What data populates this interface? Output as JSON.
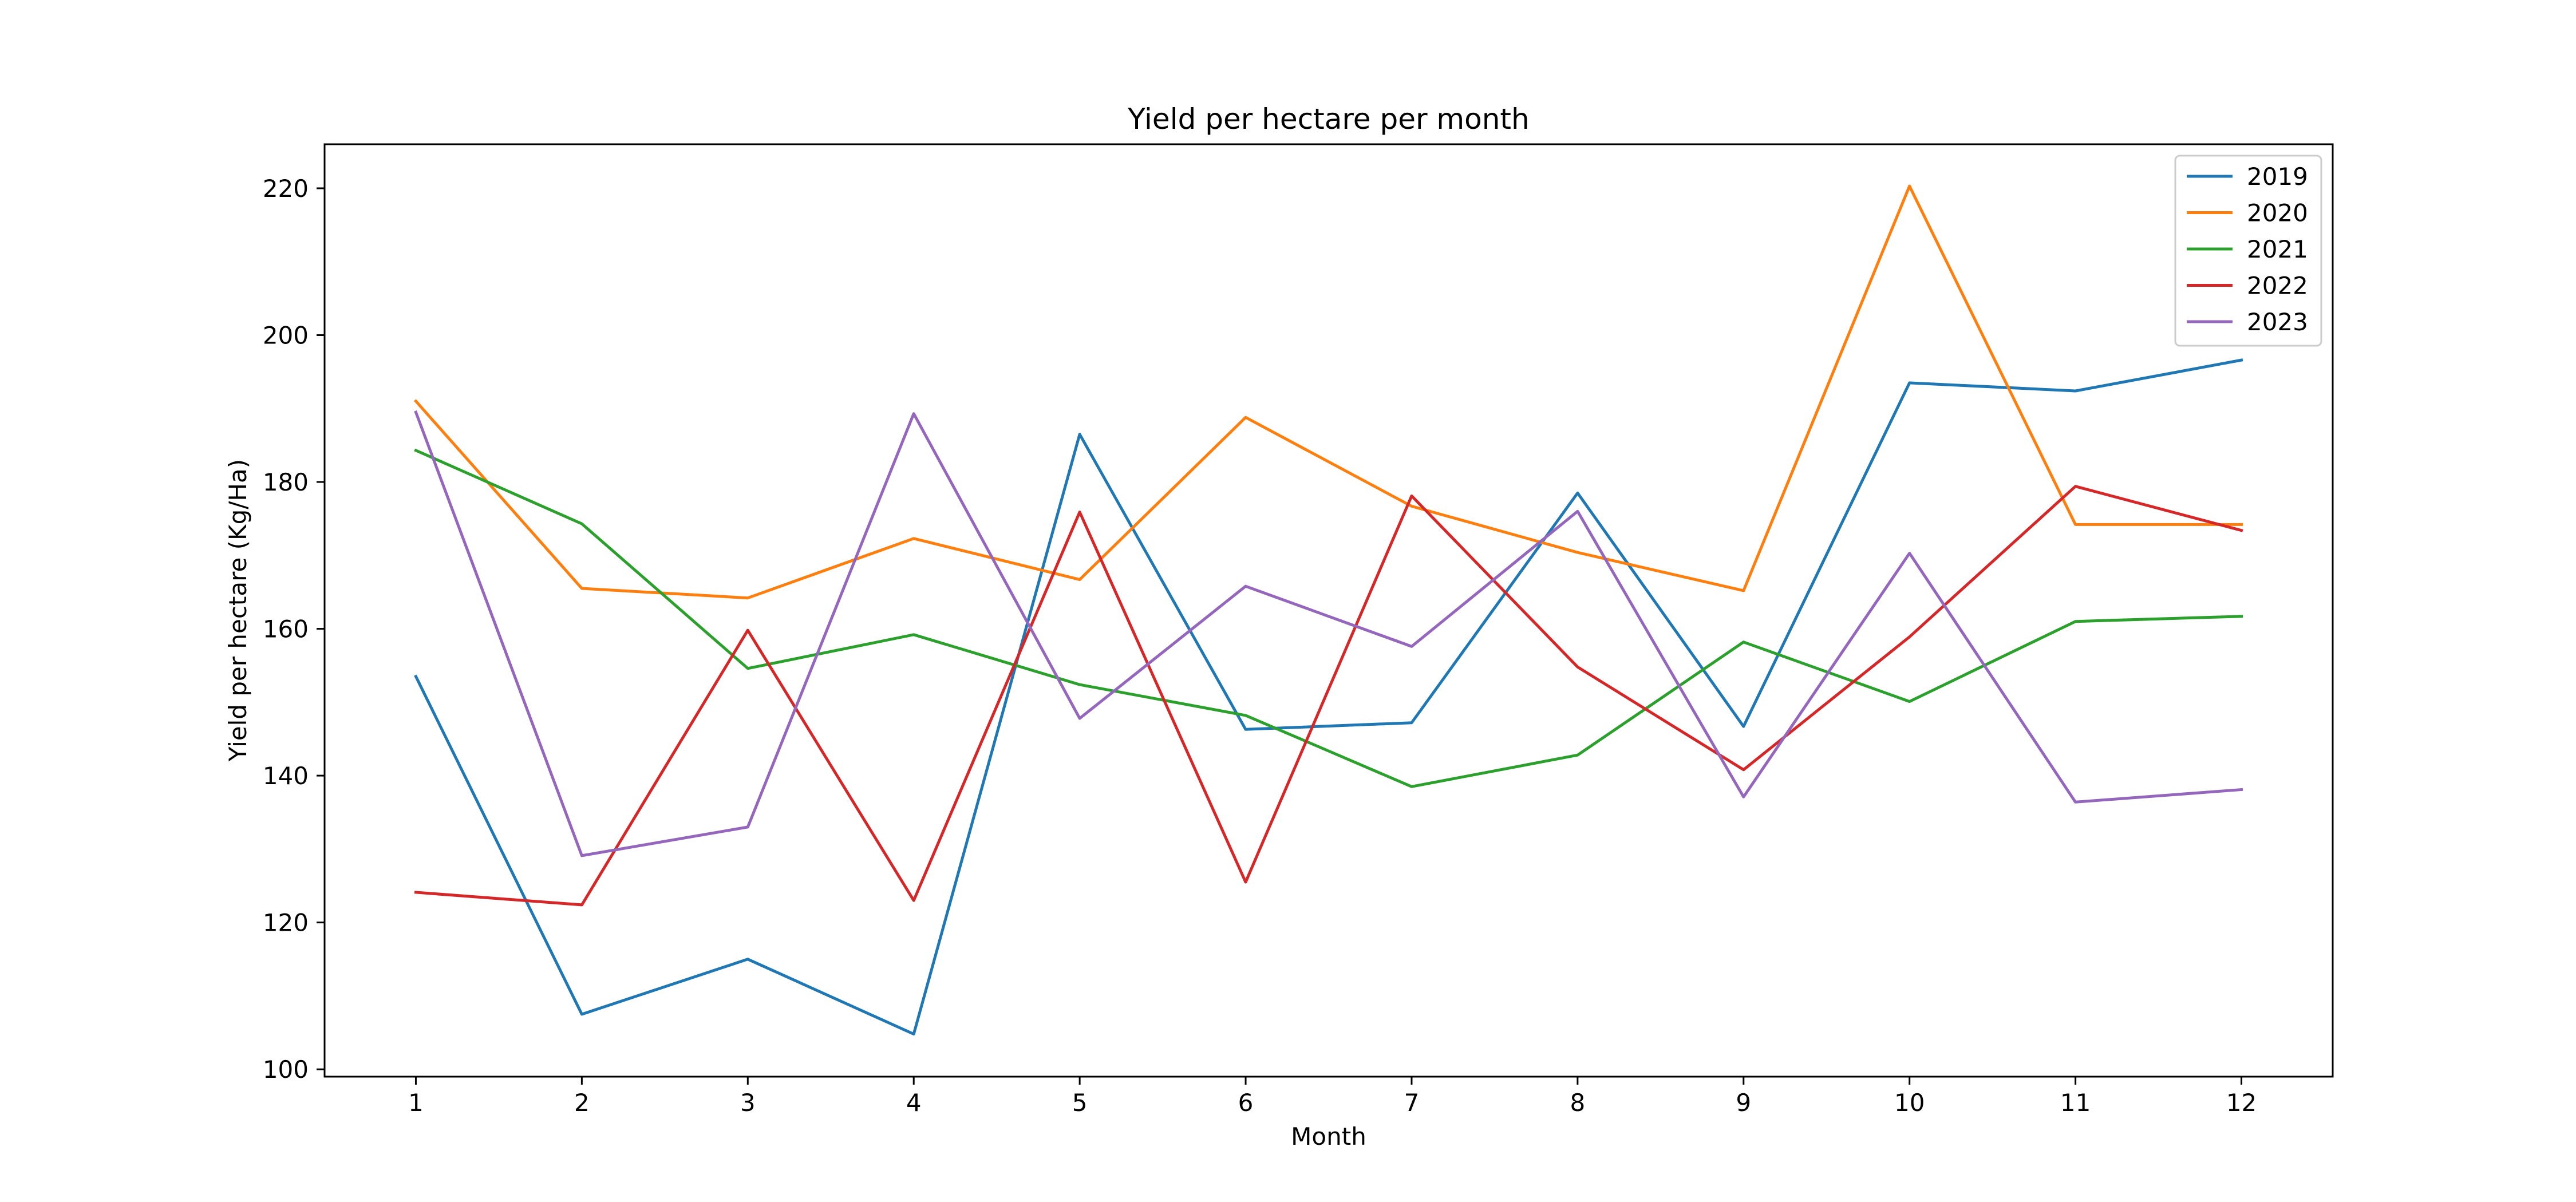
{
  "chart_data": {
    "type": "line",
    "title": "Yield per hectare per month",
    "xlabel": "Month",
    "ylabel": "Yield per hectare (Kg/Ha)",
    "x": [
      1,
      2,
      3,
      4,
      5,
      6,
      7,
      8,
      9,
      10,
      11,
      12
    ],
    "xticks": [
      "1",
      "2",
      "3",
      "4",
      "5",
      "6",
      "7",
      "8",
      "9",
      "10",
      "11",
      "12"
    ],
    "yticks": [
      100,
      120,
      140,
      160,
      180,
      200,
      220
    ],
    "xlim": [
      0.45,
      12.55
    ],
    "ylim": [
      99,
      226
    ],
    "grid": false,
    "legend_position": "top-right",
    "series": [
      {
        "name": "2019",
        "color": "#1f77b4",
        "values": [
          153.5,
          107.5,
          115.0,
          104.8,
          186.5,
          146.3,
          147.2,
          178.5,
          146.7,
          193.5,
          192.4,
          196.6
        ]
      },
      {
        "name": "2020",
        "color": "#ff7f0e",
        "values": [
          191.0,
          165.5,
          164.2,
          172.3,
          166.7,
          188.8,
          176.7,
          170.4,
          165.2,
          220.3,
          174.2,
          174.2
        ]
      },
      {
        "name": "2021",
        "color": "#2ca02c",
        "values": [
          184.3,
          174.3,
          154.6,
          159.2,
          152.4,
          148.2,
          138.5,
          142.8,
          158.2,
          150.1,
          161.0,
          161.7
        ]
      },
      {
        "name": "2022",
        "color": "#d62728",
        "values": [
          124.1,
          122.4,
          159.8,
          123.0,
          175.9,
          125.5,
          178.1,
          154.8,
          140.8,
          158.9,
          179.4,
          173.4
        ]
      },
      {
        "name": "2023",
        "color": "#9467bd",
        "values": [
          189.5,
          129.1,
          133.0,
          189.3,
          147.8,
          165.8,
          157.6,
          176.0,
          137.1,
          170.3,
          136.4,
          138.1
        ]
      }
    ]
  }
}
